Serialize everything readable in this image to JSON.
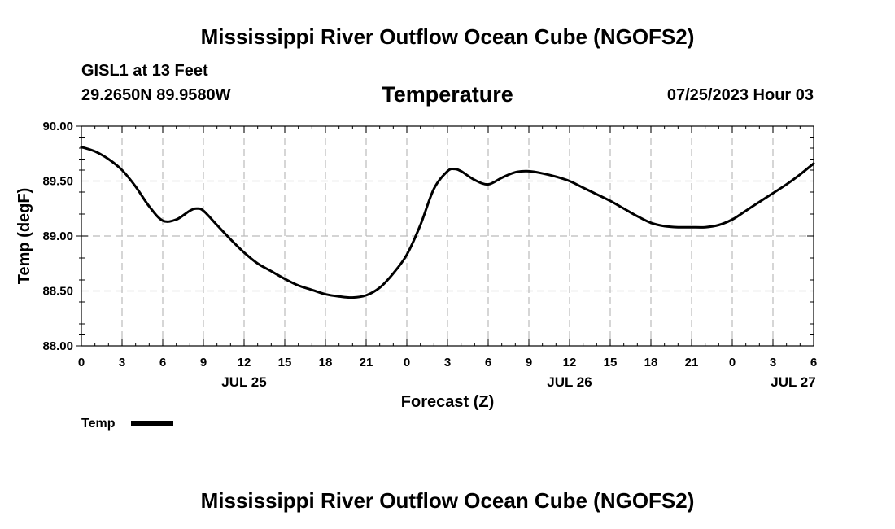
{
  "header": {
    "title": "Mississippi River Outflow Ocean Cube (NGOFS2)",
    "station": "GISL1 at 13 Feet",
    "coords": "29.2650N  89.9580W",
    "timestamp": "07/25/2023 Hour 03"
  },
  "footer": {
    "title": "Mississippi River Outflow Ocean Cube (NGOFS2)"
  },
  "colors": {
    "line": "#000000",
    "grid": "#bbbbbb"
  },
  "chart_data": {
    "type": "line",
    "title": "Temperature",
    "xlabel": "Forecast (Z)",
    "ylabel": "Temp (degF)",
    "xlim": [
      0,
      54
    ],
    "ylim": [
      88.0,
      90.0
    ],
    "grid": true,
    "yticks": [
      {
        "value": 88.0,
        "label": "88.00"
      },
      {
        "value": 88.5,
        "label": "88.50"
      },
      {
        "value": 89.0,
        "label": "89.00"
      },
      {
        "value": 89.5,
        "label": "89.50"
      },
      {
        "value": 90.0,
        "label": "90.00"
      }
    ],
    "xticks": [
      {
        "value": 0,
        "label": "0"
      },
      {
        "value": 3,
        "label": "3"
      },
      {
        "value": 6,
        "label": "6"
      },
      {
        "value": 9,
        "label": "9"
      },
      {
        "value": 12,
        "label": "12"
      },
      {
        "value": 15,
        "label": "15"
      },
      {
        "value": 18,
        "label": "18"
      },
      {
        "value": 21,
        "label": "21"
      },
      {
        "value": 24,
        "label": "0"
      },
      {
        "value": 27,
        "label": "3"
      },
      {
        "value": 30,
        "label": "6"
      },
      {
        "value": 33,
        "label": "9"
      },
      {
        "value": 36,
        "label": "12"
      },
      {
        "value": 39,
        "label": "15"
      },
      {
        "value": 42,
        "label": "18"
      },
      {
        "value": 45,
        "label": "21"
      },
      {
        "value": 48,
        "label": "0"
      },
      {
        "value": 51,
        "label": "3"
      },
      {
        "value": 54,
        "label": "6"
      }
    ],
    "day_labels": [
      {
        "value": 12,
        "label": "JUL 25"
      },
      {
        "value": 36,
        "label": "JUL 26"
      },
      {
        "value": 52.5,
        "label": "JUL 27"
      }
    ],
    "legend": {
      "label": "Temp",
      "position": "bottom-left"
    },
    "series": [
      {
        "name": "Temp",
        "x": [
          0,
          1,
          2,
          3,
          4,
          5,
          6,
          7,
          8,
          8.5,
          9,
          10,
          11,
          12,
          13,
          14,
          15,
          16,
          17,
          18,
          19,
          20,
          21,
          22,
          23,
          24,
          25,
          26,
          27,
          27.5,
          28,
          29,
          30,
          31,
          32,
          33,
          34,
          35,
          36,
          37,
          38,
          39,
          40,
          41,
          42,
          43,
          44,
          45,
          46,
          47,
          48,
          49,
          50,
          51,
          52,
          53,
          54
        ],
        "values": [
          89.81,
          89.77,
          89.7,
          89.6,
          89.45,
          89.27,
          89.14,
          89.15,
          89.23,
          89.25,
          89.23,
          89.1,
          88.97,
          88.85,
          88.75,
          88.68,
          88.61,
          88.55,
          88.51,
          88.47,
          88.45,
          88.44,
          88.46,
          88.53,
          88.66,
          88.83,
          89.1,
          89.43,
          89.59,
          89.61,
          89.59,
          89.51,
          89.47,
          89.53,
          89.58,
          89.59,
          89.57,
          89.54,
          89.5,
          89.44,
          89.38,
          89.32,
          89.25,
          89.18,
          89.12,
          89.09,
          89.08,
          89.08,
          89.08,
          89.1,
          89.15,
          89.23,
          89.31,
          89.39,
          89.47,
          89.56,
          89.66
        ]
      }
    ]
  }
}
